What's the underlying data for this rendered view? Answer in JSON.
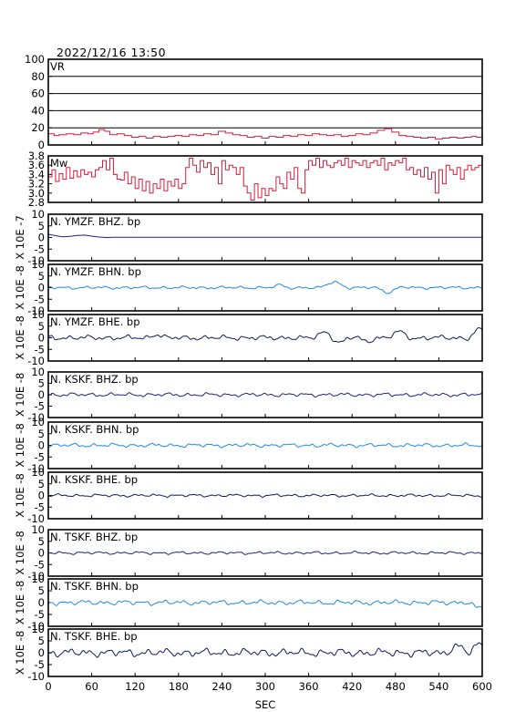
{
  "timestamp": "2022/12/16  13:50",
  "chart_data": {
    "type": "line",
    "xlabel": "SEC",
    "xlim": [
      0,
      600
    ],
    "xticks": [
      0,
      60,
      120,
      180,
      240,
      300,
      360,
      420,
      480,
      540,
      600
    ],
    "panels": [
      {
        "id": "vr",
        "label": "VR",
        "ylim": [
          0,
          100
        ],
        "yticks": [
          "0",
          "20",
          "40",
          "60",
          "80",
          "100"
        ],
        "color": "#d81b3c",
        "gridlines": [
          20,
          40,
          60,
          80,
          100
        ],
        "line_style": "step",
        "series": [
          [
            0,
            13
          ],
          [
            8,
            11
          ],
          [
            15,
            12
          ],
          [
            25,
            13
          ],
          [
            35,
            12
          ],
          [
            45,
            14
          ],
          [
            55,
            13
          ],
          [
            62,
            15
          ],
          [
            70,
            18
          ],
          [
            78,
            16
          ],
          [
            85,
            12
          ],
          [
            95,
            13
          ],
          [
            105,
            11
          ],
          [
            115,
            9
          ],
          [
            125,
            10
          ],
          [
            135,
            8
          ],
          [
            145,
            10
          ],
          [
            155,
            9
          ],
          [
            165,
            10
          ],
          [
            175,
            11
          ],
          [
            185,
            10
          ],
          [
            195,
            12
          ],
          [
            205,
            11
          ],
          [
            215,
            13
          ],
          [
            225,
            12
          ],
          [
            235,
            16
          ],
          [
            245,
            14
          ],
          [
            255,
            12
          ],
          [
            265,
            11
          ],
          [
            275,
            9
          ],
          [
            285,
            10
          ],
          [
            295,
            8
          ],
          [
            305,
            10
          ],
          [
            315,
            9
          ],
          [
            325,
            11
          ],
          [
            335,
            10
          ],
          [
            345,
            12
          ],
          [
            355,
            11
          ],
          [
            365,
            13
          ],
          [
            375,
            12
          ],
          [
            385,
            11
          ],
          [
            395,
            12
          ],
          [
            405,
            10
          ],
          [
            415,
            11
          ],
          [
            425,
            13
          ],
          [
            435,
            12
          ],
          [
            445,
            14
          ],
          [
            455,
            17
          ],
          [
            465,
            19
          ],
          [
            475,
            15
          ],
          [
            485,
            11
          ],
          [
            495,
            10
          ],
          [
            505,
            9
          ],
          [
            515,
            8
          ],
          [
            525,
            9
          ],
          [
            535,
            7
          ],
          [
            545,
            8
          ],
          [
            555,
            9
          ],
          [
            565,
            8
          ],
          [
            575,
            9
          ],
          [
            585,
            10
          ],
          [
            592,
            9
          ],
          [
            600,
            8
          ]
        ]
      },
      {
        "id": "mw",
        "label": "Mw",
        "ylim": [
          2.8,
          3.8
        ],
        "yticks": [
          "2.8",
          "3.0",
          "3.2",
          "3.4",
          "3.6",
          "3.8"
        ],
        "color": "#d81b3c",
        "gridlines": [],
        "line_style": "step",
        "series": [
          [
            0,
            3.35
          ],
          [
            5,
            3.5
          ],
          [
            10,
            3.25
          ],
          [
            15,
            3.42
          ],
          [
            20,
            3.3
          ],
          [
            25,
            3.55
          ],
          [
            30,
            3.32
          ],
          [
            35,
            3.48
          ],
          [
            40,
            3.35
          ],
          [
            45,
            3.5
          ],
          [
            50,
            3.4
          ],
          [
            55,
            3.45
          ],
          [
            60,
            3.35
          ],
          [
            65,
            3.5
          ],
          [
            70,
            3.55
          ],
          [
            75,
            3.7
          ],
          [
            80,
            3.5
          ],
          [
            85,
            3.75
          ],
          [
            90,
            3.4
          ],
          [
            95,
            3.3
          ],
          [
            100,
            3.28
          ],
          [
            105,
            3.45
          ],
          [
            110,
            3.2
          ],
          [
            115,
            3.35
          ],
          [
            120,
            3.1
          ],
          [
            125,
            3.3
          ],
          [
            130,
            3.05
          ],
          [
            135,
            3.25
          ],
          [
            140,
            3.0
          ],
          [
            145,
            3.2
          ],
          [
            150,
            3.1
          ],
          [
            155,
            3.3
          ],
          [
            160,
            3.05
          ],
          [
            165,
            3.25
          ],
          [
            170,
            3.15
          ],
          [
            175,
            3.3
          ],
          [
            180,
            3.1
          ],
          [
            185,
            3.2
          ],
          [
            190,
            3.55
          ],
          [
            195,
            3.75
          ],
          [
            200,
            3.6
          ],
          [
            205,
            3.45
          ],
          [
            210,
            3.7
          ],
          [
            215,
            3.55
          ],
          [
            220,
            3.65
          ],
          [
            225,
            3.4
          ],
          [
            230,
            3.55
          ],
          [
            235,
            3.2
          ],
          [
            240,
            3.7
          ],
          [
            245,
            3.5
          ],
          [
            250,
            3.6
          ],
          [
            255,
            3.55
          ],
          [
            260,
            3.4
          ],
          [
            265,
            3.55
          ],
          [
            270,
            3.15
          ],
          [
            275,
            3.0
          ],
          [
            280,
            2.85
          ],
          [
            285,
            3.2
          ],
          [
            290,
            2.9
          ],
          [
            295,
            3.1
          ],
          [
            300,
            2.95
          ],
          [
            305,
            3.1
          ],
          [
            310,
            3.05
          ],
          [
            315,
            3.35
          ],
          [
            320,
            3.2
          ],
          [
            325,
            3.1
          ],
          [
            330,
            3.45
          ],
          [
            335,
            3.3
          ],
          [
            340,
            3.55
          ],
          [
            345,
            3.1
          ],
          [
            350,
            3.0
          ],
          [
            355,
            3.5
          ],
          [
            360,
            3.7
          ],
          [
            365,
            3.6
          ],
          [
            370,
            3.75
          ],
          [
            375,
            3.55
          ],
          [
            380,
            3.7
          ],
          [
            385,
            3.6
          ],
          [
            390,
            3.55
          ],
          [
            395,
            3.65
          ],
          [
            400,
            3.7
          ],
          [
            405,
            3.6
          ],
          [
            410,
            3.75
          ],
          [
            415,
            3.55
          ],
          [
            420,
            3.7
          ],
          [
            425,
            3.65
          ],
          [
            430,
            3.6
          ],
          [
            435,
            3.7
          ],
          [
            440,
            3.55
          ],
          [
            445,
            3.65
          ],
          [
            450,
            3.7
          ],
          [
            455,
            3.6
          ],
          [
            460,
            3.75
          ],
          [
            465,
            3.5
          ],
          [
            470,
            3.65
          ],
          [
            475,
            3.6
          ],
          [
            480,
            3.7
          ],
          [
            485,
            3.65
          ],
          [
            490,
            3.75
          ],
          [
            495,
            3.5
          ],
          [
            500,
            3.55
          ],
          [
            505,
            3.4
          ],
          [
            510,
            3.5
          ],
          [
            515,
            3.35
          ],
          [
            520,
            3.55
          ],
          [
            525,
            3.3
          ],
          [
            530,
            3.45
          ],
          [
            535,
            3.0
          ],
          [
            540,
            3.5
          ],
          [
            545,
            3.2
          ],
          [
            550,
            3.6
          ],
          [
            555,
            3.5
          ],
          [
            560,
            3.4
          ],
          [
            565,
            3.55
          ],
          [
            570,
            3.3
          ],
          [
            575,
            3.5
          ],
          [
            580,
            3.6
          ],
          [
            585,
            3.5
          ],
          [
            590,
            3.55
          ],
          [
            595,
            3.6
          ],
          [
            600,
            3.55
          ]
        ]
      },
      {
        "id": "ymzf-bhz",
        "label": "N. YMZF. BHZ. bp",
        "yunit": "10E -7",
        "ylim": [
          -10,
          10
        ],
        "yticks": [
          "-10",
          "-5",
          "0",
          "5",
          "10"
        ],
        "color": "#1a237e",
        "amplitude": 0.3,
        "seed": 1,
        "series": [
          [
            0,
            1.4
          ],
          [
            10,
            0.8
          ],
          [
            20,
            0.3
          ],
          [
            30,
            0.5
          ],
          [
            40,
            0.9
          ],
          [
            50,
            1.0
          ],
          [
            60,
            0.6
          ],
          [
            70,
            0.2
          ],
          [
            80,
            0.0
          ],
          [
            90,
            0.1
          ]
        ]
      },
      {
        "id": "ymzf-bhn",
        "label": "N. YMZF. BHN. bp",
        "yunit": "10E -8",
        "ylim": [
          -10,
          10
        ],
        "yticks": [
          "-10",
          "-5",
          "0",
          "5",
          "10"
        ],
        "color": "#1e88e5",
        "amplitude": 0.6,
        "seed": 2,
        "events": [
          [
            395,
            2.5,
            14
          ],
          [
            470,
            -2.0,
            12
          ],
          [
            320,
            1.0,
            10
          ]
        ]
      },
      {
        "id": "ymzf-bhe",
        "label": "N. YMZF. BHE. bp",
        "yunit": "10E -8",
        "ylim": [
          -10,
          10
        ],
        "yticks": [
          "-10",
          "-5",
          "0",
          "5",
          "10"
        ],
        "color": "#0d1b5e",
        "amplitude": 1.0,
        "seed": 3,
        "events": [
          [
            385,
            2.5,
            14
          ],
          [
            400,
            -2.5,
            12
          ],
          [
            485,
            2.5,
            12
          ],
          [
            440,
            -1.5,
            10
          ],
          [
            595,
            3.5,
            10
          ],
          [
            150,
            1.5,
            10
          ]
        ]
      },
      {
        "id": "kskf-bhz",
        "label": "N. KSKF. BHZ. bp",
        "yunit": "10E -8",
        "ylim": [
          -10,
          10
        ],
        "yticks": [
          "-10",
          "-5",
          "0",
          "5",
          "10"
        ],
        "color": "#1a237e",
        "amplitude": 0.8,
        "seed": 4,
        "events": []
      },
      {
        "id": "kskf-bhn",
        "label": "N. KSKF. BHN. bp",
        "yunit": "10E -8",
        "ylim": [
          -10,
          10
        ],
        "yticks": [
          "-10",
          "-5",
          "0",
          "5",
          "10"
        ],
        "color": "#1e88e5",
        "amplitude": 0.8,
        "seed": 5,
        "events": []
      },
      {
        "id": "kskf-bhe",
        "label": "N. KSKF. BHE. bp",
        "yunit": "10E -8",
        "ylim": [
          -10,
          10
        ],
        "yticks": [
          "-10",
          "-5",
          "0",
          "5",
          "10"
        ],
        "color": "#0d1b5e",
        "amplitude": 0.6,
        "seed": 6,
        "events": []
      },
      {
        "id": "tskf-bhz",
        "label": "N. TSKF. BHZ. bp",
        "yunit": "10E -8",
        "ylim": [
          -10,
          10
        ],
        "yticks": [
          "-10",
          "-5",
          "0",
          "5",
          "10"
        ],
        "color": "#1a237e",
        "amplitude": 0.6,
        "seed": 7,
        "events": []
      },
      {
        "id": "tskf-bhn",
        "label": "N. TSKF. BHN. bp",
        "yunit": "10E -8",
        "ylim": [
          -10,
          10
        ],
        "yticks": [
          "-10",
          "-5",
          "0",
          "5",
          "10"
        ],
        "color": "#1e88e5",
        "amplitude": 1.0,
        "seed": 8,
        "events": [
          [
            595,
            -2.5,
            10
          ]
        ]
      },
      {
        "id": "tskf-bhe",
        "label": "N. TSKF. BHE. bp",
        "yunit": "10E -8",
        "ylim": [
          -10,
          10
        ],
        "yticks": [
          "-10",
          "-5",
          "0",
          "5",
          "10"
        ],
        "color": "#0d1b5e",
        "amplitude": 1.6,
        "seed": 9,
        "events": [
          [
            565,
            3.0,
            12
          ],
          [
            595,
            3.5,
            10
          ]
        ]
      }
    ]
  }
}
